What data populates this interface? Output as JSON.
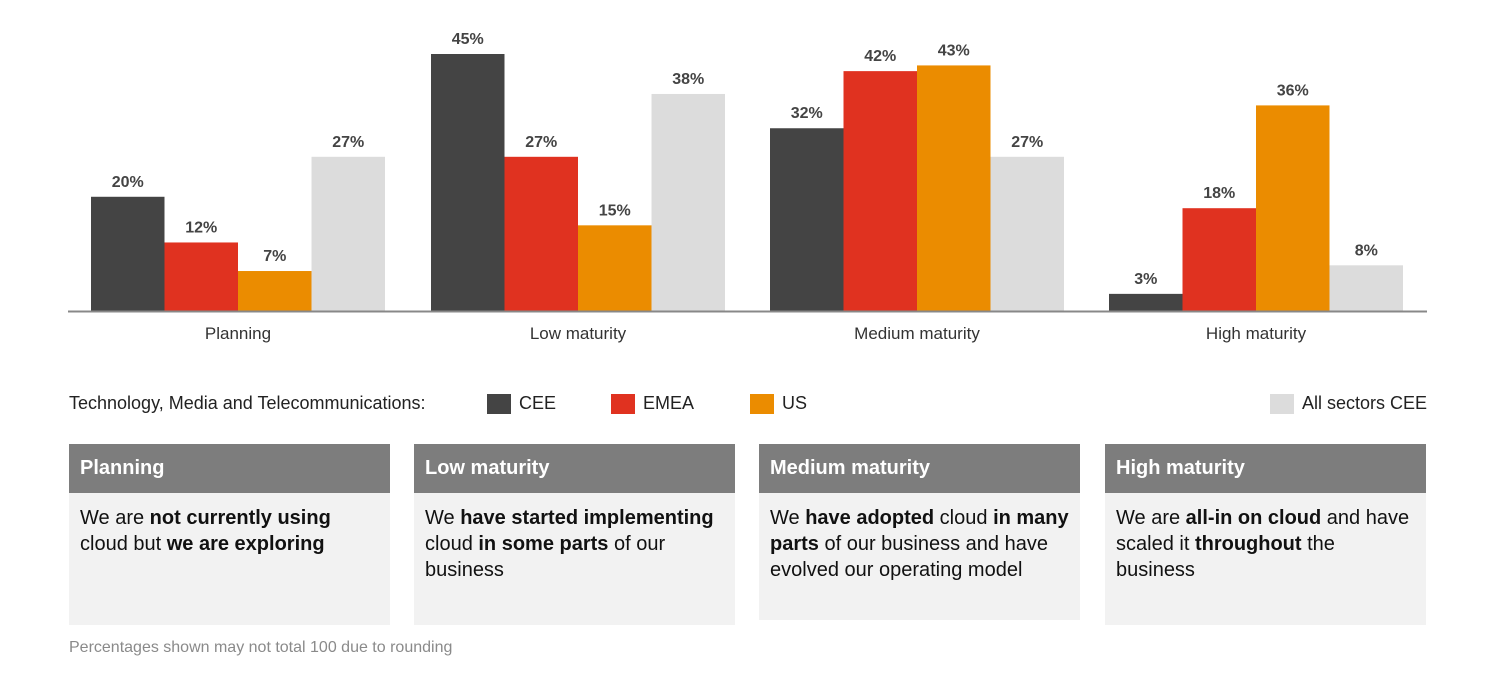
{
  "chart_data": {
    "type": "bar",
    "title": "",
    "xlabel": "",
    "ylabel": "",
    "ylim": [
      0,
      45
    ],
    "grid": false,
    "categories": [
      "Planning",
      "Low maturity",
      "Medium maturity",
      "High maturity"
    ],
    "series": [
      {
        "name": "CEE",
        "color": "#444444",
        "values": [
          20,
          45,
          32,
          3
        ]
      },
      {
        "name": "EMEA",
        "color": "#e03220",
        "values": [
          12,
          27,
          42,
          18
        ]
      },
      {
        "name": "US",
        "color": "#eb8c00",
        "values": [
          7,
          15,
          43,
          36
        ]
      },
      {
        "name": "All sectors CEE",
        "color": "#dcdcdc",
        "values": [
          27,
          38,
          27,
          8
        ]
      }
    ],
    "value_suffix": "%",
    "legend": {
      "title": "Technology, Media and Telecommunications:",
      "placement": "bottom"
    }
  },
  "legend": {
    "title": "Technology, Media and Telecommunications:",
    "items": [
      "CEE",
      "EMEA",
      "US",
      "All sectors CEE"
    ]
  },
  "cards": [
    {
      "title": "Planning",
      "parts": [
        [
          "We are ",
          false
        ],
        [
          "not currently using",
          true
        ],
        [
          " cloud but ",
          false
        ],
        [
          "we are exploring",
          true
        ]
      ]
    },
    {
      "title": "Low maturity",
      "parts": [
        [
          "We ",
          false
        ],
        [
          "have started implementing",
          true
        ],
        [
          " cloud ",
          false
        ],
        [
          "in some parts",
          true
        ],
        [
          " of our business",
          false
        ]
      ]
    },
    {
      "title": "Medium maturity",
      "parts": [
        [
          "We ",
          false
        ],
        [
          "have adopted",
          true
        ],
        [
          " cloud ",
          false
        ],
        [
          "in many parts",
          true
        ],
        [
          " of our business and have evolved our operating model",
          false
        ]
      ]
    },
    {
      "title": "High maturity",
      "parts": [
        [
          "We are ",
          false
        ],
        [
          "all-in on cloud",
          true
        ],
        [
          " and have scaled it ",
          false
        ],
        [
          "throughout",
          true
        ],
        [
          " the business",
          false
        ]
      ]
    }
  ],
  "footnote": "Percentages shown may not total 100 due to rounding"
}
